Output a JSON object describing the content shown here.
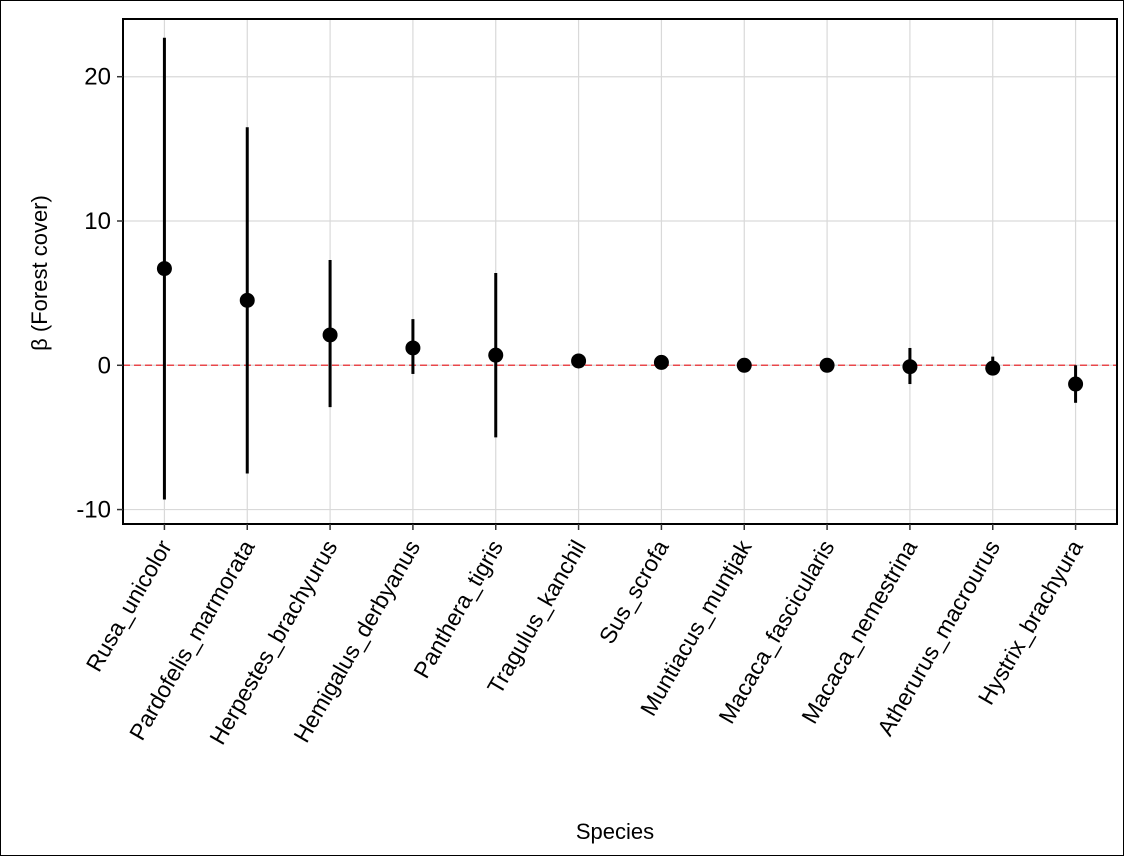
{
  "chart_data": {
    "type": "scatter",
    "title": "",
    "xlabel": "Species",
    "ylabel": "β (Forest cover)",
    "categories": [
      "Rusa_unicolor",
      "Pardofelis_marmorata",
      "Herpestes_brachyurus",
      "Hemigalus_derbyanus",
      "Panthera_tigris",
      "Tragulus_kanchil",
      "Sus_scrofa",
      "Muntiacus_muntjak",
      "Macaca_fascicularis",
      "Macaca_nemestrina",
      "Atherurus_macrourus",
      "Hystrix_brachyura"
    ],
    "values": [
      6.7,
      4.5,
      2.1,
      1.2,
      0.7,
      0.3,
      0.2,
      0.0,
      0.0,
      -0.1,
      -0.2,
      -1.3
    ],
    "lower": [
      -9.3,
      -7.5,
      -2.9,
      -0.6,
      -5.0,
      -0.1,
      0.0,
      -0.1,
      -0.1,
      -1.3,
      -0.6,
      -2.6
    ],
    "upper": [
      22.7,
      16.5,
      7.3,
      3.2,
      6.4,
      0.8,
      0.4,
      0.1,
      0.2,
      1.2,
      0.6,
      0.0
    ],
    "ylim": [
      -11,
      24
    ],
    "yticks": [
      -10,
      0,
      10,
      20
    ],
    "reference_line": {
      "y": 0,
      "color": "#e8474b",
      "style": "dashed"
    },
    "grid": true,
    "legend": "none",
    "point_color": "#000000"
  }
}
